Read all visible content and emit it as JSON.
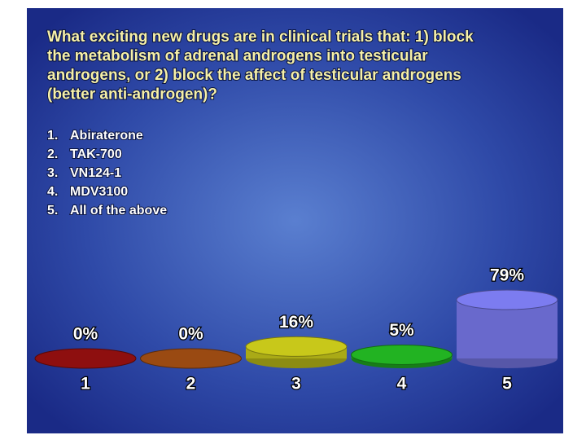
{
  "chart_data": {
    "type": "cylinder",
    "title_lines": [
      "What exciting new drugs are in clinical trials that: 1) block",
      "the metabolism of adrenal androgens into testicular",
      "androgens, or 2) block the affect of testicular androgens",
      "(better anti-androgen)?"
    ],
    "options": [
      {
        "number": "1.",
        "text": "Abiraterone"
      },
      {
        "number": "2.",
        "text": "TAK-700"
      },
      {
        "number": "3.",
        "text": "VN124-1"
      },
      {
        "number": "4.",
        "text": "MDV3100"
      },
      {
        "number": "5.",
        "text": "All of the above"
      }
    ],
    "categories": [
      "1",
      "2",
      "3",
      "4",
      "5"
    ],
    "values": [
      0,
      0,
      16,
      5,
      79
    ],
    "value_labels": [
      "0%",
      "0%",
      "16%",
      "5%",
      "79%"
    ],
    "colors": [
      "#8e0f0f",
      "#9a4a12",
      "#c8c81a",
      "#22b322",
      "#7c7cf0"
    ]
  }
}
